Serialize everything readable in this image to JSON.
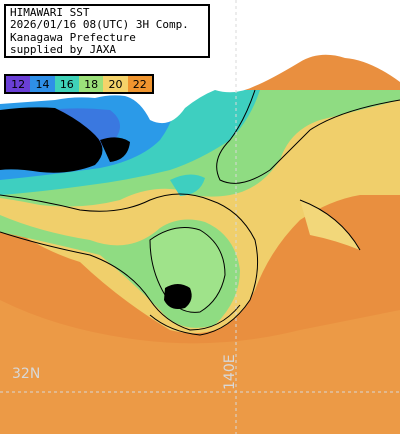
{
  "info": {
    "line1": "HIMAWARI SST",
    "line2": "2026/01/16 08(UTC) 3H Comp.",
    "line3": "Kanagawa Prefecture",
    "line4": "supplied by JAXA"
  },
  "legend": {
    "entries": [
      {
        "label": "12",
        "color": "#6a3fd6"
      },
      {
        "label": "14",
        "color": "#2e8fe8"
      },
      {
        "label": "16",
        "color": "#3fd2b8"
      },
      {
        "label": "18",
        "color": "#9be07a"
      },
      {
        "label": "20",
        "color": "#f5d36a"
      },
      {
        "label": "22",
        "color": "#f0952f"
      }
    ]
  },
  "grid": {
    "lat_label": "32N",
    "lon_label": "140E"
  },
  "colors": {
    "land": "#ffffff",
    "cloud": "#000000",
    "sea_warm": "#e98f3f",
    "sea_yellow": "#f0cf6b",
    "sea_green": "#8fdc82",
    "sea_cyan": "#3ecfc0",
    "sea_blue": "#2b9ae8"
  }
}
